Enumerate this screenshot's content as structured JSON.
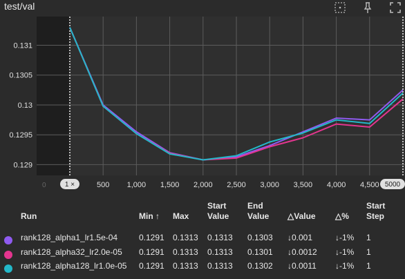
{
  "panel": {
    "title": "test/val"
  },
  "header_icons": [
    "fit-domain-icon",
    "pin-icon",
    "fullscreen-icon"
  ],
  "chart_data": {
    "type": "line",
    "title": "test/val",
    "xlim": [
      0,
      5000
    ],
    "ylim": [
      0.12882,
      0.13148
    ],
    "y_ticks": [
      0.129,
      0.1295,
      0.13,
      0.1305,
      0.131
    ],
    "y_tick_labels": [
      "0.129",
      "0.1295",
      "0.13",
      "0.1305",
      "0.131"
    ],
    "x_ticks": [
      500,
      1000,
      1500,
      2000,
      2500,
      3000,
      3500,
      4000,
      4500
    ],
    "x_tick_labels": [
      "500",
      "1,000",
      "1,500",
      "2,000",
      "2,500",
      "3,000",
      "3,500",
      "4,000",
      "4,500"
    ],
    "x_start_label": "0",
    "x_min_chip": "1 ×",
    "x_max_chip": "5000",
    "grid": true,
    "series": [
      {
        "name": "rank128_alpha1_lr1.5e-04",
        "color": "#8f5bf0",
        "x": [
          0,
          500,
          1000,
          1500,
          2000,
          2500,
          3000,
          3500,
          4000,
          4500,
          5000
        ],
        "y": [
          0.1313,
          0.13,
          0.12955,
          0.1292,
          0.12908,
          0.12913,
          0.12932,
          0.12955,
          0.12978,
          0.12975,
          0.13025
        ]
      },
      {
        "name": "rank128_alpha32_lr2.0e-05",
        "color": "#e4358f",
        "x": [
          0,
          500,
          1000,
          1500,
          2000,
          2500,
          3000,
          3500,
          4000,
          4500,
          5000
        ],
        "y": [
          0.1313,
          0.12998,
          0.12952,
          0.12919,
          0.12908,
          0.12911,
          0.1293,
          0.12945,
          0.12968,
          0.12963,
          0.1301
        ]
      },
      {
        "name": "rank128_alpha128_lr1.0e-05",
        "color": "#23b8c9",
        "x": [
          0,
          500,
          1000,
          1500,
          2000,
          2500,
          3000,
          3500,
          4000,
          4500,
          5000
        ],
        "y": [
          0.1313,
          0.12998,
          0.12952,
          0.12918,
          0.12908,
          0.12915,
          0.12938,
          0.12953,
          0.12975,
          0.12969,
          0.1302
        ]
      }
    ]
  },
  "table": {
    "headers": {
      "run": "Run",
      "min": "Min ↑",
      "max": "Max",
      "start_value": [
        "Start",
        "Value"
      ],
      "end_value": [
        "End",
        "Value"
      ],
      "delta_value": "△Value",
      "delta_pct": "△%",
      "start_step": [
        "Start",
        "Step"
      ]
    },
    "rows": [
      {
        "color": "#8f5bf0",
        "run": "rank128_alpha1_lr1.5e-04",
        "min": "0.1291",
        "max": "0.1313",
        "start": "0.1313",
        "end": "0.1303",
        "dvalue": "↓0.001",
        "dpct": "↓-1%",
        "step": "1"
      },
      {
        "color": "#e4358f",
        "run": "rank128_alpha32_lr2.0e-05",
        "min": "0.1291",
        "max": "0.1313",
        "start": "0.1313",
        "end": "0.1301",
        "dvalue": "↓0.0012",
        "dpct": "↓-1%",
        "step": "1"
      },
      {
        "color": "#23b8c9",
        "run": "rank128_alpha128_lr1.0e-05",
        "min": "0.1291",
        "max": "0.1313",
        "start": "0.1313",
        "end": "0.1302",
        "dvalue": "↓0.0011",
        "dpct": "↓-1%",
        "step": "1"
      }
    ]
  }
}
